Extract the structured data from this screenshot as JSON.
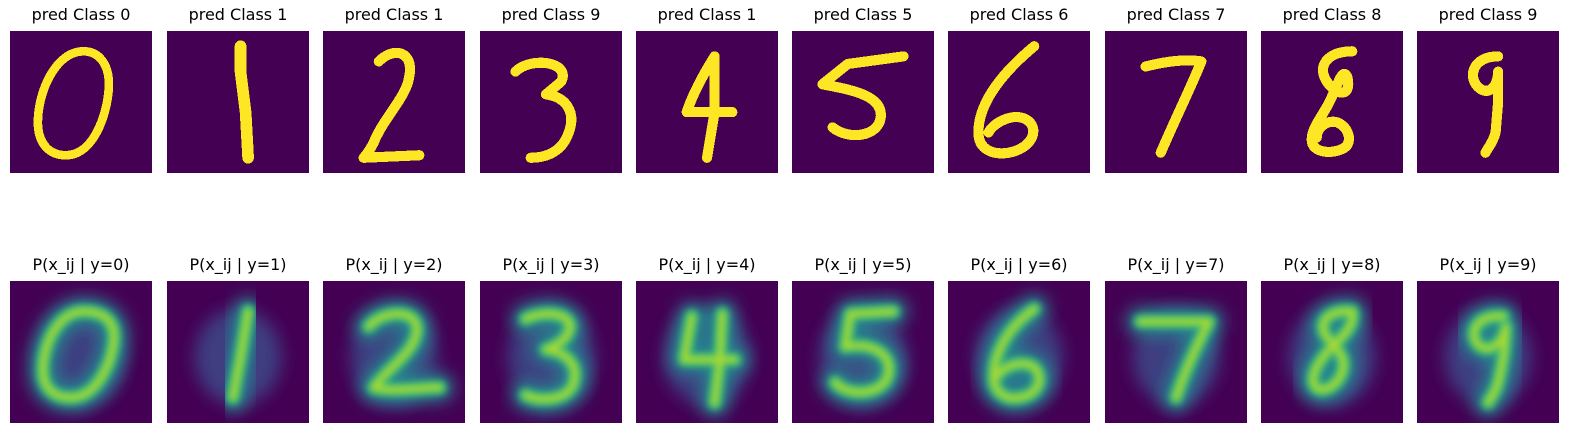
{
  "colors": {
    "background": "#440154",
    "binary_on": "#fde725",
    "viridis": [
      "#440154",
      "#482878",
      "#3e4989",
      "#31688e",
      "#26828e",
      "#1f9e89",
      "#35b779",
      "#6ece58",
      "#b5de2b",
      "#fde725"
    ]
  },
  "top_row": [
    {
      "title": "pred Class 0",
      "digit": 0
    },
    {
      "title": "pred Class 1",
      "digit": 1
    },
    {
      "title": "pred Class 1",
      "digit": 2
    },
    {
      "title": "pred Class 9",
      "digit": 3
    },
    {
      "title": "pred Class 1",
      "digit": 4
    },
    {
      "title": "pred Class 5",
      "digit": 5
    },
    {
      "title": "pred Class 6",
      "digit": 6
    },
    {
      "title": "pred Class 7",
      "digit": 7
    },
    {
      "title": "pred Class 8",
      "digit": 8
    },
    {
      "title": "pred Class 9",
      "digit": 9
    }
  ],
  "bottom_row": [
    {
      "title": "P(x_ij | y=0)",
      "digit": 0
    },
    {
      "title": "P(x_ij | y=1)",
      "digit": 1
    },
    {
      "title": "P(x_ij | y=2)",
      "digit": 2
    },
    {
      "title": "P(x_ij | y=3)",
      "digit": 3
    },
    {
      "title": "P(x_ij | y=4)",
      "digit": 4
    },
    {
      "title": "P(x_ij | y=5)",
      "digit": 5
    },
    {
      "title": "P(x_ij | y=6)",
      "digit": 6
    },
    {
      "title": "P(x_ij | y=7)",
      "digit": 7
    },
    {
      "title": "P(x_ij | y=8)",
      "digit": 8
    },
    {
      "title": "P(x_ij | y=9)",
      "digit": 9
    }
  ]
}
